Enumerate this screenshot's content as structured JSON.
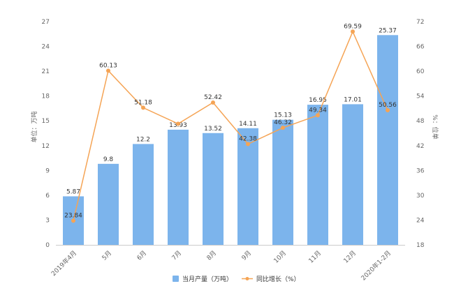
{
  "chart_data": {
    "type": "bar",
    "title": "",
    "categories": [
      "2019年4月",
      "5月",
      "6月",
      "7月",
      "8月",
      "9月",
      "10月",
      "11月",
      "12月",
      "2020年1-2月"
    ],
    "series": [
      {
        "name": "当月产量（万吨）",
        "type": "bar",
        "axis": "left",
        "color": "#7cb4ec",
        "values": [
          5.87,
          9.8,
          12.2,
          13.93,
          13.52,
          14.11,
          15.13,
          16.95,
          17.01,
          25.37
        ],
        "labels": [
          "5.87",
          "9.8",
          "12.2",
          "13.93",
          "13.52",
          "14.11",
          "15.13",
          "16.95",
          "17.01",
          "25.37"
        ]
      },
      {
        "name": "同比增长（%）",
        "type": "line",
        "axis": "right",
        "color": "#f5a455",
        "values": [
          23.84,
          60.13,
          51.18,
          47.3,
          52.42,
          42.38,
          46.32,
          49.34,
          69.59,
          50.56
        ],
        "labels": [
          "23.84",
          "60.13",
          "51.18",
          "",
          "52.42",
          "42.38",
          "46.32",
          "49.34",
          "69.59",
          "50.56"
        ]
      }
    ],
    "ylabel_left": "单位：万吨",
    "ylabel_right": "%：位单",
    "ylim_left": [
      0,
      27
    ],
    "yticks_left": [
      "0",
      "3",
      "6",
      "9",
      "12",
      "15",
      "18",
      "21",
      "24",
      "27"
    ],
    "ylim_right": [
      18,
      72
    ],
    "yticks_right": [
      "18",
      "24",
      "30",
      "36",
      "42",
      "48",
      "54",
      "60",
      "66",
      "72"
    ],
    "grid": false,
    "legend_position": "bottom"
  }
}
